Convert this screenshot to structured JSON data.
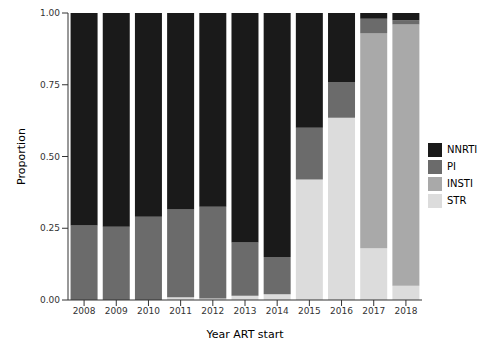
{
  "chart_data": {
    "type": "bar",
    "stacked": true,
    "x_label": "Year ART start",
    "y_label": "Proportion",
    "categories": [
      "2008",
      "2009",
      "2010",
      "2011",
      "2012",
      "2013",
      "2014",
      "2015",
      "2016",
      "2017",
      "2018"
    ],
    "ylim": [
      0,
      1
    ],
    "yticks": [
      {
        "value": 0,
        "label": "0.00"
      },
      {
        "value": 0.25,
        "label": "0.25"
      },
      {
        "value": 0.5,
        "label": "0.50"
      },
      {
        "value": 0.75,
        "label": "0.75"
      },
      {
        "value": 1,
        "label": "1.00"
      }
    ],
    "legend": "right",
    "series": [
      {
        "name": "NNRTI",
        "color": "#1a1a1a",
        "values": [
          0.74,
          0.745,
          0.71,
          0.685,
          0.675,
          0.8,
          0.85,
          0.4,
          0.24,
          0.02,
          0.025
        ]
      },
      {
        "name": "PI",
        "color": "#6b6b6b",
        "values": [
          0.26,
          0.255,
          0.29,
          0.305,
          0.32,
          0.185,
          0.13,
          0.18,
          0.125,
          0.05,
          0.015
        ]
      },
      {
        "name": "INSTI",
        "color": "#a9a9a9",
        "values": [
          0,
          0,
          0,
          0,
          0,
          0,
          0,
          0,
          0,
          0.75,
          0.91
        ]
      },
      {
        "name": "STR",
        "color": "#dcdcdc",
        "values": [
          0,
          0,
          0,
          0.01,
          0.005,
          0.015,
          0.02,
          0.42,
          0.635,
          0.18,
          0.05
        ]
      }
    ]
  }
}
